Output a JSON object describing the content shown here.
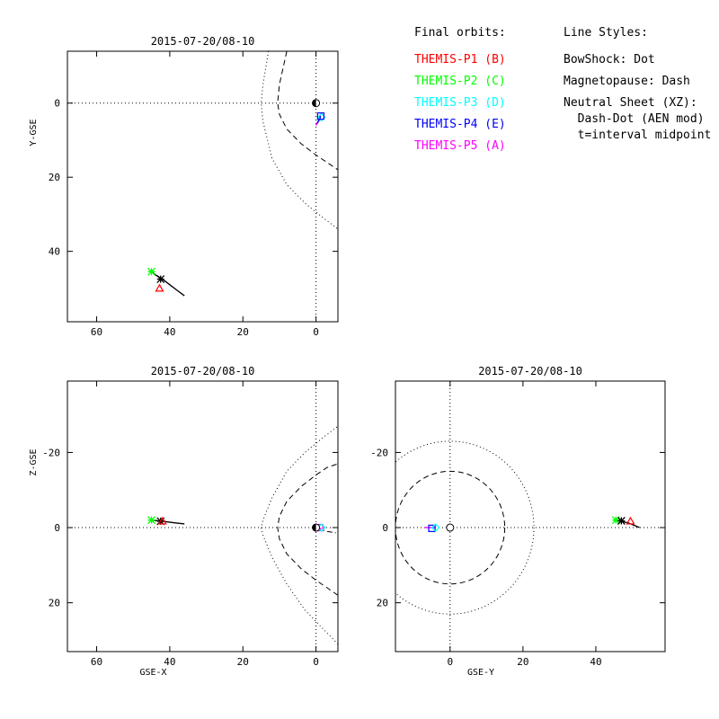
{
  "legend": {
    "orbits_title": "Final orbits:",
    "styles_title": "Line Styles:",
    "probes": [
      {
        "label": "THEMIS-P1 (B)",
        "color": "#ff0000"
      },
      {
        "label": "THEMIS-P2 (C)",
        "color": "#00ff00"
      },
      {
        "label": "THEMIS-P3 (D)",
        "color": "#00ffff"
      },
      {
        "label": "THEMIS-P4 (E)",
        "color": "#0000ff"
      },
      {
        "label": "THEMIS-P5 (A)",
        "color": "#ff00ff"
      }
    ],
    "styles": [
      "BowShock: Dot",
      "Magnetopause: Dash",
      "Neutral Sheet (XZ):",
      "  Dash-Dot (AEN mod)",
      "  t=interval midpoint"
    ]
  },
  "chart_data": [
    {
      "id": "xy",
      "type": "scatter",
      "title": "2015-07-20/08-10",
      "xlabel": "",
      "ylabel": "Y-GSE",
      "xlim": [
        68,
        -6
      ],
      "ylim": [
        -14,
        59
      ],
      "xticks": [
        60,
        40,
        20,
        0
      ],
      "yticks": [
        0,
        20,
        40
      ],
      "ytick_labels": [
        "0",
        "20",
        "40"
      ],
      "lines": [
        {
          "style": "dot",
          "points": [
            [
              13,
              -14
            ],
            [
              14.5,
              -5
            ],
            [
              15,
              0
            ],
            [
              14.5,
              5
            ],
            [
              12,
              15
            ],
            [
              8,
              22
            ],
            [
              3,
              27
            ],
            [
              -2,
              31
            ],
            [
              -6,
              34
            ]
          ]
        },
        {
          "style": "dash",
          "points": [
            [
              8,
              -14
            ],
            [
              10,
              -5
            ],
            [
              10.5,
              0
            ],
            [
              10,
              3
            ],
            [
              8,
              7
            ],
            [
              4,
              11
            ],
            [
              0,
              14
            ],
            [
              -3,
              16
            ],
            [
              -6,
              18
            ]
          ]
        },
        {
          "style": "dot",
          "points": [
            [
              0,
              -14
            ],
            [
              0,
              59
            ]
          ]
        },
        {
          "style": "dot",
          "points": [
            [
              68,
              0
            ],
            [
              -6,
              0
            ]
          ]
        }
      ],
      "orbits": [
        {
          "color": "#000000",
          "points": [
            [
              36,
              52
            ],
            [
              38,
              50.5
            ],
            [
              40,
              49
            ],
            [
              42,
              47.5
            ],
            [
              44,
              46.3
            ],
            [
              45,
              45.5
            ]
          ]
        },
        {
          "color": "#ff00ff",
          "points": [
            [
              0,
              6
            ],
            [
              -0.8,
              4.5
            ],
            [
              -1.2,
              3
            ]
          ]
        },
        {
          "color": "#0000ff",
          "points": [
            [
              -0.3,
              5.5
            ],
            [
              -0.9,
              4.5
            ],
            [
              -1.3,
              3.5
            ]
          ]
        }
      ],
      "markers": [
        {
          "shape": "star",
          "color": "#00ff00",
          "x": 45,
          "y": 45.5
        },
        {
          "shape": "star",
          "color": "#000000",
          "x": 42.5,
          "y": 47.5
        },
        {
          "shape": "triangle",
          "color": "#ff0000",
          "x": 42.8,
          "y": 50
        },
        {
          "shape": "diamond",
          "color": "#00ffff",
          "x": -1.5,
          "y": 3.8
        },
        {
          "shape": "square",
          "color": "#0000ff",
          "x": -1.3,
          "y": 3.5
        },
        {
          "shape": "earth",
          "color": "#000000",
          "x": 0,
          "y": 0
        }
      ]
    },
    {
      "id": "xz",
      "type": "scatter",
      "title": "2015-07-20/08-10",
      "xlabel": "GSE-X",
      "ylabel": "Z-GSE",
      "xlim": [
        68,
        -6
      ],
      "ylim": [
        -39,
        33
      ],
      "xticks": [
        60,
        40,
        20,
        0
      ],
      "yticks": [
        20,
        0,
        -20
      ],
      "ytick_labels": [
        "20",
        "0",
        "-20"
      ],
      "lines": [
        {
          "style": "dot",
          "points": [
            [
              -6,
              31
            ],
            [
              -2,
              27
            ],
            [
              3,
              22
            ],
            [
              8,
              15
            ],
            [
              12,
              8
            ],
            [
              14.5,
              2
            ],
            [
              15,
              0
            ],
            [
              14.5,
              -2
            ],
            [
              12,
              -8
            ],
            [
              8,
              -15
            ],
            [
              3,
              -20
            ],
            [
              -2,
              -24
            ],
            [
              -6,
              -27
            ]
          ]
        },
        {
          "style": "dash",
          "points": [
            [
              -6,
              18
            ],
            [
              -3,
              16
            ],
            [
              0,
              14
            ],
            [
              4,
              11
            ],
            [
              8,
              7
            ],
            [
              10,
              3
            ],
            [
              10.5,
              0
            ],
            [
              10,
              -3
            ],
            [
              8,
              -7
            ],
            [
              4,
              -11
            ],
            [
              0,
              -14
            ],
            [
              -3,
              -16
            ],
            [
              -6,
              -17
            ]
          ]
        },
        {
          "style": "dot",
          "points": [
            [
              0,
              -39
            ],
            [
              0,
              33
            ]
          ]
        },
        {
          "style": "dot",
          "points": [
            [
              68,
              0
            ],
            [
              -6,
              0
            ]
          ]
        },
        {
          "style": "dashdot",
          "points": [
            [
              0,
              0
            ],
            [
              -3,
              1
            ],
            [
              -6,
              1.5
            ]
          ]
        }
      ],
      "orbits": [
        {
          "color": "#000000",
          "points": [
            [
              36,
              -1
            ],
            [
              39,
              -1.3
            ],
            [
              42,
              -1.7
            ],
            [
              45,
              -2
            ]
          ]
        },
        {
          "color": "#ff00ff",
          "points": [
            [
              0.8,
              0
            ],
            [
              -0.5,
              0.2
            ],
            [
              -1.5,
              0.3
            ]
          ]
        }
      ],
      "markers": [
        {
          "shape": "star",
          "color": "#00ff00",
          "x": 45,
          "y": -2
        },
        {
          "shape": "star",
          "color": "#000000",
          "x": 42.5,
          "y": -1.7
        },
        {
          "shape": "triangle",
          "color": "#ff0000",
          "x": 42,
          "y": -1.7
        },
        {
          "shape": "square",
          "color": "#ff00ff",
          "x": -1,
          "y": 0
        },
        {
          "shape": "diamond",
          "color": "#00ffff",
          "x": -1.5,
          "y": 0
        },
        {
          "shape": "earth",
          "color": "#000000",
          "x": 0,
          "y": 0
        }
      ]
    },
    {
      "id": "yz",
      "type": "scatter",
      "title": "2015-07-20/08-10",
      "xlabel": "GSE-Y",
      "ylabel": "",
      "xlim": [
        -15,
        59
      ],
      "ylim": [
        -39,
        33
      ],
      "xticks": [
        0,
        20,
        40
      ],
      "yticks": [
        20,
        0,
        -20
      ],
      "ytick_labels": [
        "20",
        "0",
        "-20"
      ],
      "lines": [
        {
          "style": "dot",
          "points": [
            [
              0,
              -39
            ],
            [
              0,
              33
            ]
          ]
        },
        {
          "style": "dot",
          "points": [
            [
              -15,
              0
            ],
            [
              59,
              0
            ]
          ]
        }
      ],
      "circles": [
        {
          "style": "dot",
          "cx": 0,
          "cy": 0,
          "r": 23
        },
        {
          "style": "dash",
          "cx": 0,
          "cy": 0,
          "r": 15
        }
      ],
      "orbits": [
        {
          "color": "#000000",
          "points": [
            [
              45,
              -2
            ],
            [
              47,
              -1.7
            ],
            [
              49,
              -1.2
            ],
            [
              52,
              0
            ]
          ]
        },
        {
          "color": "#ff00ff",
          "points": [
            [
              -7,
              0
            ],
            [
              -5.5,
              0
            ],
            [
              -4,
              0
            ]
          ]
        }
      ],
      "markers": [
        {
          "shape": "star",
          "color": "#00ff00",
          "x": 45.5,
          "y": -2
        },
        {
          "shape": "star",
          "color": "#000000",
          "x": 47,
          "y": -1.8
        },
        {
          "shape": "triangle",
          "color": "#ff0000",
          "x": 49.5,
          "y": -1.7
        },
        {
          "shape": "square",
          "color": "#0000ff",
          "x": -5,
          "y": 0.2
        },
        {
          "shape": "diamond",
          "color": "#00ffff",
          "x": -4,
          "y": 0
        },
        {
          "shape": "earth",
          "color": "#000000",
          "x": 0,
          "y": 0
        }
      ]
    }
  ]
}
